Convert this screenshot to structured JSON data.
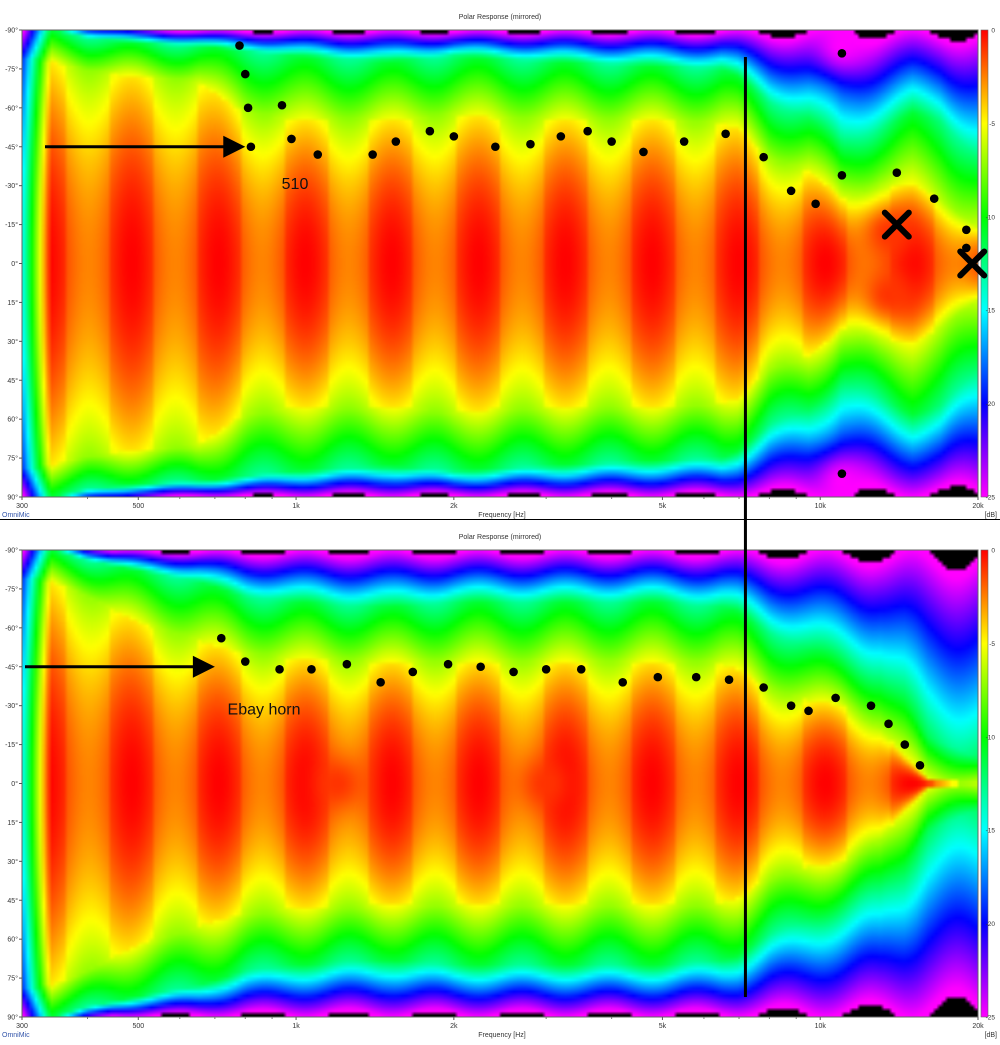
{
  "colors": {
    "background": "#ffffff",
    "plot_outside": "#000000",
    "scale_stops": [
      "#ff0000",
      "#ff7f00",
      "#ffff00",
      "#7fff00",
      "#00ff00",
      "#00ffff",
      "#0070ff",
      "#8000ff",
      "#ff00ff"
    ],
    "annotation": "#000000"
  },
  "chart_data": [
    {
      "type": "heatmap",
      "title": "Polar Response (mirrored)",
      "xlabel": "Frequency [Hz]",
      "brand": "OmniMic",
      "x_scale": "log",
      "x_range_hz": [
        300,
        20000
      ],
      "x_ticks": [
        {
          "value": 300,
          "label": "300"
        },
        {
          "value": 500,
          "label": "500"
        },
        {
          "value": 1000,
          "label": "1k"
        },
        {
          "value": 2000,
          "label": "2k"
        },
        {
          "value": 5000,
          "label": "5k"
        },
        {
          "value": 10000,
          "label": "10k"
        },
        {
          "value": 20000,
          "label": "20k"
        }
      ],
      "y_range_deg": [
        -90,
        90
      ],
      "y_ticks": [
        {
          "value": -90,
          "label": "-90°"
        },
        {
          "value": -75,
          "label": "-75°"
        },
        {
          "value": -60,
          "label": "-60°"
        },
        {
          "value": -45,
          "label": "-45°"
        },
        {
          "value": -30,
          "label": "-30°"
        },
        {
          "value": -15,
          "label": "-15°"
        },
        {
          "value": 0,
          "label": "0°"
        },
        {
          "value": 15,
          "label": "15°"
        },
        {
          "value": 30,
          "label": "30°"
        },
        {
          "value": 45,
          "label": "45°"
        },
        {
          "value": 60,
          "label": "60°"
        },
        {
          "value": 75,
          "label": "75°"
        },
        {
          "value": 90,
          "label": "90°"
        }
      ],
      "colorbar_unit": "[dB]",
      "colorbar_range_db": [
        -25,
        0
      ],
      "colorbar_ticks": [
        {
          "value": 0,
          "label": "0"
        },
        {
          "value": -5,
          "label": "-5"
        },
        {
          "value": -10,
          "label": "-10"
        },
        {
          "value": -15,
          "label": "-15"
        },
        {
          "value": -20,
          "label": "-20"
        },
        {
          "value": -25,
          "label": "-25"
        }
      ],
      "beamwidth_profile": {
        "freq_hz": [
          300,
          340,
          400,
          500,
          650,
          800,
          1000,
          1500,
          2000,
          3000,
          5000,
          6500,
          7000,
          8000,
          9500,
          11000,
          13000,
          15000,
          17000,
          20000
        ],
        "minus6db_deg": [
          80,
          78,
          74,
          72,
          70,
          58,
          55,
          55,
          57,
          55,
          55,
          54,
          52,
          40,
          36,
          25,
          30,
          30,
          25,
          14
        ],
        "minus12db_deg": [
          90,
          90,
          87,
          85,
          84,
          82,
          80,
          78,
          80,
          78,
          76,
          75,
          72,
          62,
          56,
          45,
          52,
          58,
          55,
          40
        ]
      },
      "hot_spots": [
        {
          "freq_hz": 13500,
          "angle_deg": -12,
          "level_db": -1
        },
        {
          "freq_hz": 13500,
          "angle_deg": 12,
          "level_db": -1
        },
        {
          "freq_hz": 11000,
          "angle_deg": -84,
          "level_db": -25
        },
        {
          "freq_hz": 11000,
          "angle_deg": 84,
          "level_db": -25
        }
      ],
      "annotations": {
        "label": "510",
        "arrow_target_freq_hz": 800,
        "arrow_target_angle_deg": -45,
        "crossover_line_freq_hz": 7200,
        "x_marks": [
          {
            "freq_hz": 14000,
            "angle_deg": -15
          },
          {
            "freq_hz": 19500,
            "angle_deg": 0
          }
        ],
        "dots": [
          {
            "freq_hz": 780,
            "angle_deg": -84
          },
          {
            "freq_hz": 800,
            "angle_deg": -73
          },
          {
            "freq_hz": 810,
            "angle_deg": -60
          },
          {
            "freq_hz": 820,
            "angle_deg": -45
          },
          {
            "freq_hz": 940,
            "angle_deg": -61
          },
          {
            "freq_hz": 980,
            "angle_deg": -48
          },
          {
            "freq_hz": 1100,
            "angle_deg": -42
          },
          {
            "freq_hz": 1400,
            "angle_deg": -42
          },
          {
            "freq_hz": 1550,
            "angle_deg": -47
          },
          {
            "freq_hz": 1800,
            "angle_deg": -51
          },
          {
            "freq_hz": 2000,
            "angle_deg": -49
          },
          {
            "freq_hz": 2400,
            "angle_deg": -45
          },
          {
            "freq_hz": 2800,
            "angle_deg": -46
          },
          {
            "freq_hz": 3200,
            "angle_deg": -49
          },
          {
            "freq_hz": 3600,
            "angle_deg": -51
          },
          {
            "freq_hz": 4000,
            "angle_deg": -47
          },
          {
            "freq_hz": 4600,
            "angle_deg": -43
          },
          {
            "freq_hz": 5500,
            "angle_deg": -47
          },
          {
            "freq_hz": 6600,
            "angle_deg": -50
          },
          {
            "freq_hz": 7800,
            "angle_deg": -41
          },
          {
            "freq_hz": 8800,
            "angle_deg": -28
          },
          {
            "freq_hz": 9800,
            "angle_deg": -23
          },
          {
            "freq_hz": 11000,
            "angle_deg": -34
          },
          {
            "freq_hz": 14000,
            "angle_deg": -35
          },
          {
            "freq_hz": 16500,
            "angle_deg": -25
          },
          {
            "freq_hz": 19000,
            "angle_deg": -13
          },
          {
            "freq_hz": 19000,
            "angle_deg": -6
          },
          {
            "freq_hz": 11000,
            "angle_deg": -81
          },
          {
            "freq_hz": 11000,
            "angle_deg": 81
          }
        ]
      }
    },
    {
      "type": "heatmap",
      "title": "Polar Response (mirrored)",
      "xlabel": "Frequency [Hz]",
      "brand": "OmniMic",
      "x_scale": "log",
      "x_range_hz": [
        300,
        20000
      ],
      "x_ticks": [
        {
          "value": 300,
          "label": "300"
        },
        {
          "value": 500,
          "label": "500"
        },
        {
          "value": 1000,
          "label": "1k"
        },
        {
          "value": 2000,
          "label": "2k"
        },
        {
          "value": 5000,
          "label": "5k"
        },
        {
          "value": 10000,
          "label": "10k"
        },
        {
          "value": 20000,
          "label": "20k"
        }
      ],
      "y_range_deg": [
        -90,
        90
      ],
      "y_ticks": [
        {
          "value": -90,
          "label": "-90°"
        },
        {
          "value": -75,
          "label": "-75°"
        },
        {
          "value": -60,
          "label": "-60°"
        },
        {
          "value": -45,
          "label": "-45°"
        },
        {
          "value": -30,
          "label": "-30°"
        },
        {
          "value": -15,
          "label": "-15°"
        },
        {
          "value": 0,
          "label": "0°"
        },
        {
          "value": 15,
          "label": "15°"
        },
        {
          "value": 30,
          "label": "30°"
        },
        {
          "value": 45,
          "label": "45°"
        },
        {
          "value": 60,
          "label": "60°"
        },
        {
          "value": 75,
          "label": "75°"
        },
        {
          "value": 90,
          "label": "90°"
        }
      ],
      "colorbar_unit": "[dB]",
      "colorbar_range_db": [
        -25,
        0
      ],
      "colorbar_ticks": [
        {
          "value": 0,
          "label": "0"
        },
        {
          "value": -5,
          "label": "-5"
        },
        {
          "value": -10,
          "label": "-10"
        },
        {
          "value": -15,
          "label": "-15"
        },
        {
          "value": -20,
          "label": "-20"
        },
        {
          "value": -25,
          "label": "-25"
        }
      ],
      "beamwidth_profile": {
        "freq_hz": [
          300,
          340,
          400,
          500,
          650,
          800,
          1000,
          1500,
          2000,
          3000,
          5000,
          6500,
          7000,
          8000,
          9500,
          11000,
          13000,
          14500,
          16000,
          20000
        ],
        "minus6db_deg": [
          80,
          78,
          72,
          62,
          55,
          50,
          48,
          47,
          47,
          47,
          47,
          46,
          44,
          36,
          32,
          30,
          22,
          10,
          2,
          0
        ],
        "minus12db_deg": [
          90,
          90,
          86,
          82,
          78,
          72,
          70,
          68,
          70,
          70,
          70,
          68,
          66,
          58,
          52,
          48,
          42,
          32,
          18,
          10
        ]
      },
      "hot_spots": [
        {
          "freq_hz": 1200,
          "angle_deg": 0,
          "level_db": -1
        },
        {
          "freq_hz": 3000,
          "angle_deg": 0,
          "level_db": -1
        }
      ],
      "annotations": {
        "label": "Ebay horn",
        "arrow_target_freq_hz": 700,
        "arrow_target_angle_deg": -45,
        "crossover_line_freq_hz": 7200,
        "x_marks": [],
        "dots": [
          {
            "freq_hz": 720,
            "angle_deg": -56
          },
          {
            "freq_hz": 800,
            "angle_deg": -47
          },
          {
            "freq_hz": 930,
            "angle_deg": -44
          },
          {
            "freq_hz": 1070,
            "angle_deg": -44
          },
          {
            "freq_hz": 1250,
            "angle_deg": -46
          },
          {
            "freq_hz": 1450,
            "angle_deg": -39
          },
          {
            "freq_hz": 1670,
            "angle_deg": -43
          },
          {
            "freq_hz": 1950,
            "angle_deg": -46
          },
          {
            "freq_hz": 2250,
            "angle_deg": -45
          },
          {
            "freq_hz": 2600,
            "angle_deg": -43
          },
          {
            "freq_hz": 3000,
            "angle_deg": -44
          },
          {
            "freq_hz": 3500,
            "angle_deg": -44
          },
          {
            "freq_hz": 4200,
            "angle_deg": -39
          },
          {
            "freq_hz": 4900,
            "angle_deg": -41
          },
          {
            "freq_hz": 5800,
            "angle_deg": -41
          },
          {
            "freq_hz": 6700,
            "angle_deg": -40
          },
          {
            "freq_hz": 7800,
            "angle_deg": -37
          },
          {
            "freq_hz": 8800,
            "angle_deg": -30
          },
          {
            "freq_hz": 9500,
            "angle_deg": -28
          },
          {
            "freq_hz": 10700,
            "angle_deg": -33
          },
          {
            "freq_hz": 12500,
            "angle_deg": -30
          },
          {
            "freq_hz": 13500,
            "angle_deg": -23
          },
          {
            "freq_hz": 14500,
            "angle_deg": -15
          },
          {
            "freq_hz": 15500,
            "angle_deg": -7
          }
        ]
      }
    }
  ]
}
